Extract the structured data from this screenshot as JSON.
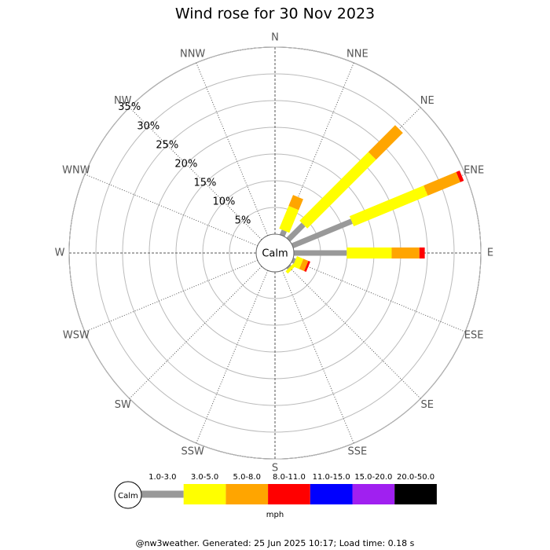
{
  "chart_data": {
    "type": "windrose",
    "title": "Wind rose for 30 Nov 2023",
    "categories": [
      "N",
      "NNE",
      "NE",
      "ENE",
      "E",
      "ESE",
      "SE",
      "SSE",
      "S",
      "SSW",
      "SW",
      "WSW",
      "W",
      "WNW",
      "NW",
      "NNW"
    ],
    "series": [
      {
        "name": "1.0-3.0",
        "color": "#999999",
        "values": [
          0,
          1.0,
          4.0,
          12,
          9.9,
          0.5,
          0.3,
          0,
          0,
          0,
          0,
          0,
          0,
          0,
          0,
          0
        ]
      },
      {
        "name": "3.0-5.0",
        "color": "#ffff00",
        "values": [
          0,
          4.6,
          18.2,
          15,
          8.4,
          1.3,
          0.6,
          0,
          0,
          0,
          0,
          0,
          0,
          0,
          0,
          0
        ]
      },
      {
        "name": "5.0-8.0",
        "color": "#ffa500",
        "values": [
          0,
          2.2,
          7.1,
          6.6,
          5.2,
          1.0,
          0,
          0,
          0,
          0,
          0,
          0,
          0,
          0,
          0,
          0
        ]
      },
      {
        "name": "8.0-11.0",
        "color": "#ff0000",
        "values": [
          0,
          0,
          0,
          0.7,
          1.0,
          0.4,
          0,
          0,
          0,
          0,
          0,
          0,
          0,
          0,
          0,
          0
        ]
      },
      {
        "name": "11.0-15.0",
        "color": "#0000ff",
        "values": [
          0,
          0,
          0,
          0,
          0,
          0,
          0,
          0,
          0,
          0,
          0,
          0,
          0,
          0,
          0,
          0
        ]
      },
      {
        "name": "15.0-20.0",
        "color": "#a020f0",
        "values": [
          0,
          0,
          0,
          0,
          0,
          0,
          0,
          0,
          0,
          0,
          0,
          0,
          0,
          0,
          0,
          0
        ]
      },
      {
        "name": "20.0-50.0",
        "color": "#000000",
        "values": [
          0,
          0,
          0,
          0,
          0,
          0,
          0,
          0,
          0,
          0,
          0,
          0,
          0,
          0,
          0,
          0
        ]
      }
    ],
    "ylim": [
      0,
      35
    ],
    "yticks": [
      {
        "value": 5,
        "label": "5%"
      },
      {
        "value": 10,
        "label": "10%"
      },
      {
        "value": 15,
        "label": "15%"
      },
      {
        "value": 20,
        "label": "20%"
      },
      {
        "value": 25,
        "label": "25%"
      },
      {
        "value": 30,
        "label": "30%"
      },
      {
        "value": 35,
        "label": "35%"
      }
    ],
    "calm_label": "Calm",
    "legend_unit": "mph",
    "footer": "@nw3weather. Generated: 25 Jun 2025 10:17; Load time: 0.18 s"
  }
}
